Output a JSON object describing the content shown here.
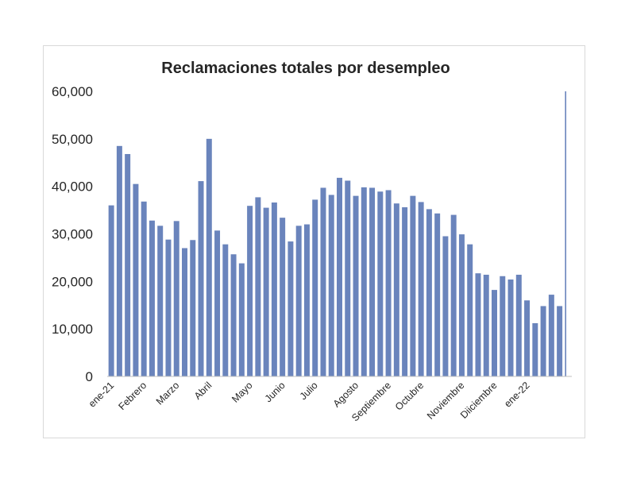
{
  "chart_data": {
    "type": "bar",
    "title": "Reclamaciones totales por desempleo",
    "xlabel": "",
    "ylabel": "",
    "ylim": [
      0,
      60000
    ],
    "yticks": [
      "0",
      "10,000",
      "20,000",
      "30,000",
      "40,000",
      "50,000",
      "60,000"
    ],
    "ytick_values": [
      0,
      10000,
      20000,
      30000,
      40000,
      50000,
      60000
    ],
    "grid": false,
    "legend": "none",
    "bar_color": "#6a84bc",
    "month_labels": [
      {
        "label": "ene-21",
        "index": 0
      },
      {
        "label": "Febrero",
        "index": 4
      },
      {
        "label": "Marzo",
        "index": 8
      },
      {
        "label": "Abril",
        "index": 12
      },
      {
        "label": "Mayo",
        "index": 17
      },
      {
        "label": "Junio",
        "index": 21
      },
      {
        "label": "Julio",
        "index": 25
      },
      {
        "label": "Agosto",
        "index": 30
      },
      {
        "label": "Septiembre",
        "index": 34
      },
      {
        "label": "Octubre",
        "index": 38
      },
      {
        "label": "Noviembre",
        "index": 43
      },
      {
        "label": "Diiciembre",
        "index": 47
      },
      {
        "label": "ene-22",
        "index": 51
      }
    ],
    "values": [
      36000,
      48500,
      46800,
      40500,
      36800,
      32800,
      31700,
      28800,
      32700,
      27000,
      28700,
      41100,
      50000,
      30700,
      27800,
      25700,
      23800,
      35900,
      37700,
      35500,
      36600,
      33400,
      28400,
      31700,
      32000,
      37200,
      39700,
      38200,
      41800,
      41200,
      38000,
      39800,
      39700,
      38900,
      39200,
      36400,
      35600,
      38000,
      36700,
      35200,
      34300,
      29500,
      34000,
      29900,
      27800,
      21700,
      21400,
      18200,
      21100,
      20400,
      21400,
      16000,
      11200,
      14800,
      17200,
      14800,
      60000
    ]
  }
}
